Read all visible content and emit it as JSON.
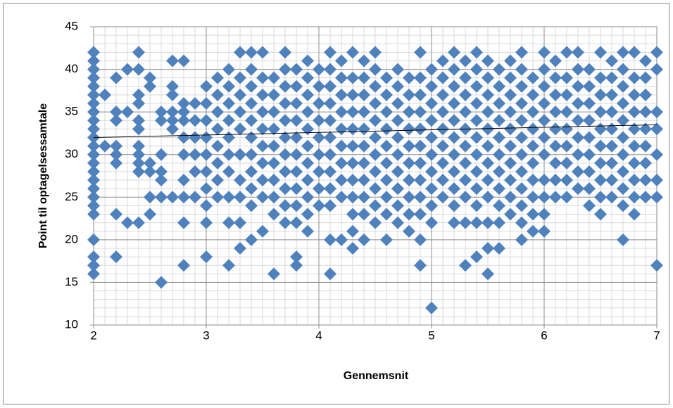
{
  "chart_data": {
    "type": "scatter",
    "xlabel": "Gennemsnit",
    "ylabel": "Point til optagelsessamtale",
    "xlim": [
      2,
      7
    ],
    "xticks": [
      2,
      3,
      4,
      5,
      6,
      7
    ],
    "ylim": [
      10,
      45
    ],
    "yticks": [
      10,
      15,
      20,
      25,
      30,
      35,
      40,
      45
    ],
    "grid": true,
    "minor_grid": true,
    "color": "#4f81bd",
    "trendline": {
      "x": [
        2,
        7
      ],
      "values": [
        32,
        33.5
      ],
      "color": "#000000"
    },
    "x": [
      2,
      2,
      2,
      2,
      2,
      2,
      2,
      2,
      2,
      2,
      2,
      2,
      2,
      2,
      2,
      2,
      2,
      2,
      2,
      2,
      2,
      2,
      2,
      2,
      2.1,
      2.1,
      2.2,
      2.2,
      2.2,
      2.2,
      2.2,
      2.2,
      2.2,
      2.2,
      2.3,
      2.3,
      2.3,
      2.4,
      2.4,
      2.4,
      2.4,
      2.4,
      2.4,
      2.4,
      2.4,
      2.4,
      2.4,
      2.4,
      2.5,
      2.5,
      2.5,
      2.5,
      2.5,
      2.5,
      2.6,
      2.6,
      2.6,
      2.6,
      2.6,
      2.6,
      2.6,
      2.7,
      2.7,
      2.7,
      2.7,
      2.7,
      2.7,
      2.7,
      2.8,
      2.8,
      2.8,
      2.8,
      2.8,
      2.8,
      2.8,
      2.8,
      2.8,
      2.8,
      2.9,
      2.9,
      2.9,
      2.9,
      2.9,
      2.9,
      3,
      3,
      3,
      3,
      3,
      3,
      3,
      3,
      3,
      3,
      3.1,
      3.1,
      3.1,
      3.1,
      3.1,
      3.1,
      3.1,
      3.1,
      3.2,
      3.2,
      3.2,
      3.2,
      3.2,
      3.2,
      3.2,
      3.2,
      3.2,
      3.2,
      3.3,
      3.3,
      3.3,
      3.3,
      3.3,
      3.3,
      3.3,
      3.3,
      3.3,
      3.3,
      3.4,
      3.4,
      3.4,
      3.4,
      3.4,
      3.4,
      3.4,
      3.4,
      3.4,
      3.4,
      3.4,
      3.5,
      3.5,
      3.5,
      3.5,
      3.5,
      3.5,
      3.5,
      3.5,
      3.5,
      3.5,
      3.6,
      3.6,
      3.6,
      3.6,
      3.6,
      3.6,
      3.6,
      3.6,
      3.6,
      3.6,
      3.7,
      3.7,
      3.7,
      3.7,
      3.7,
      3.7,
      3.7,
      3.7,
      3.7,
      3.7,
      3.7,
      3.8,
      3.8,
      3.8,
      3.8,
      3.8,
      3.8,
      3.8,
      3.8,
      3.8,
      3.8,
      3.8,
      3.8,
      3.9,
      3.9,
      3.9,
      3.9,
      3.9,
      3.9,
      3.9,
      3.9,
      3.9,
      3.9,
      3.9,
      4,
      4,
      4,
      4,
      4,
      4,
      4,
      4,
      4,
      4.1,
      4.1,
      4.1,
      4.1,
      4.1,
      4.1,
      4.1,
      4.1,
      4.1,
      4.1,
      4.1,
      4.1,
      4.2,
      4.2,
      4.2,
      4.2,
      4.2,
      4.2,
      4.2,
      4.2,
      4.2,
      4.2,
      4.3,
      4.3,
      4.3,
      4.3,
      4.3,
      4.3,
      4.3,
      4.3,
      4.3,
      4.3,
      4.3,
      4.3,
      4.4,
      4.4,
      4.4,
      4.4,
      4.4,
      4.4,
      4.4,
      4.4,
      4.4,
      4.4,
      4.4,
      4.5,
      4.5,
      4.5,
      4.5,
      4.5,
      4.5,
      4.5,
      4.5,
      4.5,
      4.5,
      4.5,
      4.6,
      4.6,
      4.6,
      4.6,
      4.6,
      4.6,
      4.6,
      4.6,
      4.6,
      4.6,
      4.7,
      4.7,
      4.7,
      4.7,
      4.7,
      4.7,
      4.7,
      4.7,
      4.7,
      4.7,
      4.8,
      4.8,
      4.8,
      4.8,
      4.8,
      4.8,
      4.8,
      4.8,
      4.8,
      4.8,
      4.9,
      4.9,
      4.9,
      4.9,
      4.9,
      4.9,
      4.9,
      4.9,
      4.9,
      4.9,
      4.9,
      4.9,
      5,
      5,
      5,
      5,
      5,
      5,
      5,
      5,
      5,
      5,
      5,
      5.1,
      5.1,
      5.1,
      5.1,
      5.1,
      5.1,
      5.1,
      5.1,
      5.1,
      5.2,
      5.2,
      5.2,
      5.2,
      5.2,
      5.2,
      5.2,
      5.2,
      5.2,
      5.2,
      5.2,
      5.3,
      5.3,
      5.3,
      5.3,
      5.3,
      5.3,
      5.3,
      5.3,
      5.3,
      5.3,
      5.3,
      5.4,
      5.4,
      5.4,
      5.4,
      5.4,
      5.4,
      5.4,
      5.4,
      5.4,
      5.4,
      5.4,
      5.4,
      5.5,
      5.5,
      5.5,
      5.5,
      5.5,
      5.5,
      5.5,
      5.5,
      5.5,
      5.5,
      5.5,
      5.5,
      5.6,
      5.6,
      5.6,
      5.6,
      5.6,
      5.6,
      5.6,
      5.6,
      5.6,
      5.6,
      5.6,
      5.7,
      5.7,
      5.7,
      5.7,
      5.7,
      5.7,
      5.7,
      5.7,
      5.7,
      5.7,
      5.8,
      5.8,
      5.8,
      5.8,
      5.8,
      5.8,
      5.8,
      5.8,
      5.8,
      5.8,
      5.8,
      5.8,
      5.9,
      5.9,
      5.9,
      5.9,
      5.9,
      5.9,
      5.9,
      5.9,
      5.9,
      5.9,
      6,
      6,
      6,
      6,
      6,
      6,
      6,
      6,
      6,
      6,
      6,
      6.1,
      6.1,
      6.1,
      6.1,
      6.1,
      6.1,
      6.1,
      6.1,
      6.1,
      6.2,
      6.2,
      6.2,
      6.2,
      6.2,
      6.2,
      6.2,
      6.2,
      6.2,
      6.3,
      6.3,
      6.3,
      6.3,
      6.3,
      6.3,
      6.3,
      6.3,
      6.3,
      6.4,
      6.4,
      6.4,
      6.4,
      6.4,
      6.4,
      6.4,
      6.4,
      6.4,
      6.5,
      6.5,
      6.5,
      6.5,
      6.5,
      6.5,
      6.5,
      6.5,
      6.5,
      6.5,
      6.6,
      6.6,
      6.6,
      6.6,
      6.6,
      6.6,
      6.6,
      6.6,
      6.6,
      6.7,
      6.7,
      6.7,
      6.7,
      6.7,
      6.7,
      6.7,
      6.7,
      6.7,
      6.7,
      6.7,
      6.8,
      6.8,
      6.8,
      6.8,
      6.8,
      6.8,
      6.8,
      6.8,
      6.8,
      6.8,
      6.9,
      6.9,
      6.9,
      6.9,
      6.9,
      6.9,
      6.9,
      6.9,
      6.9,
      7,
      7,
      7,
      7,
      7,
      7,
      7,
      7
    ],
    "values": [
      16,
      17,
      18,
      20,
      23,
      24,
      25,
      26,
      27,
      28,
      29,
      30,
      31,
      32,
      33,
      34,
      35,
      36,
      37,
      38,
      39,
      40,
      41,
      42,
      31,
      37,
      18,
      23,
      29,
      30,
      31,
      34,
      35,
      39,
      22,
      35,
      40,
      22,
      28,
      29,
      30,
      31,
      33,
      34,
      36,
      37,
      40,
      42,
      23,
      25,
      28,
      29,
      38,
      39,
      15,
      25,
      27,
      28,
      30,
      34,
      35,
      25,
      33,
      34,
      35,
      37,
      38,
      41,
      17,
      22,
      25,
      27,
      30,
      32,
      34,
      35,
      36,
      41,
      25,
      28,
      30,
      32,
      34,
      36,
      18,
      22,
      24,
      26,
      28,
      30,
      32,
      34,
      36,
      38,
      25,
      27,
      29,
      31,
      33,
      35,
      37,
      39,
      17,
      22,
      25,
      28,
      30,
      32,
      34,
      36,
      38,
      40,
      19,
      22,
      25,
      27,
      30,
      33,
      35,
      37,
      39,
      42,
      20,
      24,
      26,
      28,
      30,
      32,
      34,
      36,
      38,
      40,
      42,
      21,
      25,
      27,
      29,
      31,
      33,
      35,
      37,
      39,
      42,
      16,
      23,
      25,
      27,
      29,
      31,
      33,
      35,
      37,
      39,
      22,
      24,
      26,
      28,
      30,
      32,
      34,
      36,
      38,
      40,
      42,
      17,
      18,
      22,
      24,
      26,
      28,
      30,
      32,
      34,
      36,
      38,
      40,
      21,
      23,
      25,
      27,
      29,
      31,
      33,
      35,
      37,
      39,
      41,
      24,
      26,
      28,
      30,
      32,
      34,
      36,
      38,
      40,
      16,
      20,
      24,
      26,
      28,
      30,
      32,
      34,
      36,
      38,
      40,
      42,
      20,
      25,
      27,
      29,
      31,
      33,
      35,
      37,
      39,
      41,
      19,
      21,
      23,
      25,
      27,
      29,
      31,
      33,
      35,
      37,
      39,
      42,
      20,
      23,
      25,
      27,
      29,
      31,
      33,
      35,
      37,
      39,
      41,
      22,
      24,
      26,
      28,
      30,
      32,
      34,
      36,
      38,
      40,
      42,
      20,
      23,
      25,
      27,
      29,
      31,
      33,
      35,
      37,
      39,
      22,
      24,
      26,
      28,
      30,
      32,
      34,
      36,
      38,
      40,
      21,
      23,
      25,
      27,
      29,
      31,
      33,
      35,
      37,
      39,
      17,
      20,
      23,
      25,
      27,
      29,
      31,
      33,
      35,
      37,
      39,
      42,
      12,
      22,
      24,
      26,
      28,
      30,
      32,
      34,
      36,
      38,
      40,
      25,
      27,
      29,
      31,
      33,
      35,
      37,
      39,
      41,
      22,
      24,
      26,
      28,
      30,
      32,
      34,
      36,
      38,
      40,
      42,
      17,
      22,
      25,
      27,
      29,
      31,
      33,
      35,
      37,
      39,
      41,
      18,
      22,
      24,
      26,
      28,
      30,
      32,
      34,
      36,
      38,
      40,
      42,
      16,
      19,
      22,
      25,
      27,
      29,
      31,
      33,
      35,
      37,
      39,
      41,
      19,
      22,
      24,
      26,
      28,
      30,
      32,
      34,
      36,
      38,
      40,
      23,
      25,
      27,
      29,
      31,
      33,
      35,
      37,
      39,
      41,
      20,
      22,
      24,
      26,
      28,
      30,
      32,
      34,
      36,
      38,
      40,
      42,
      21,
      23,
      25,
      27,
      29,
      31,
      33,
      35,
      37,
      39,
      21,
      23,
      25,
      27,
      30,
      32,
      34,
      36,
      38,
      40,
      42,
      25,
      27,
      29,
      31,
      33,
      35,
      37,
      39,
      41,
      25,
      27,
      29,
      31,
      33,
      35,
      37,
      39,
      42,
      26,
      28,
      30,
      32,
      34,
      36,
      38,
      40,
      42,
      24,
      26,
      28,
      30,
      32,
      34,
      36,
      38,
      40,
      23,
      25,
      27,
      29,
      31,
      33,
      35,
      37,
      39,
      42,
      25,
      27,
      29,
      31,
      33,
      35,
      37,
      39,
      41,
      20,
      24,
      26,
      28,
      30,
      32,
      34,
      36,
      38,
      40,
      42,
      23,
      25,
      27,
      29,
      31,
      33,
      35,
      37,
      39,
      42,
      25,
      27,
      29,
      31,
      33,
      35,
      37,
      39,
      41,
      17,
      25,
      27,
      30,
      33,
      35,
      40,
      42
    ]
  }
}
